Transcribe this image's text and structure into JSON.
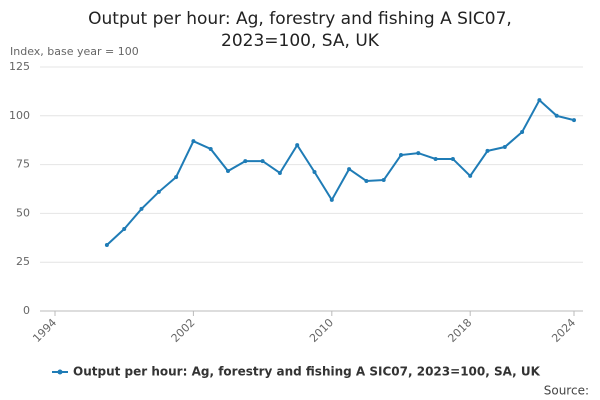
{
  "chart_data": {
    "type": "line",
    "title": "Output per hour: Ag, forestry and fishing A SIC07, 2023=100, SA, UK",
    "y_label": "Index, base year = 100",
    "source_label": "Source:",
    "x": [
      1997,
      1998,
      1999,
      2000,
      2001,
      2002,
      2003,
      2004,
      2005,
      2006,
      2007,
      2008,
      2009,
      2010,
      2011,
      2012,
      2013,
      2014,
      2015,
      2016,
      2017,
      2018,
      2019,
      2020,
      2021,
      2022,
      2023,
      2024
    ],
    "series": [
      {
        "name": "Output per hour: Ag, forestry and fishing A SIC07, 2023=100, SA, UK",
        "color": "#1f7cb6",
        "values": [
          33.8,
          42,
          52.3,
          61,
          68.6,
          87,
          83,
          71.7,
          76.8,
          76.8,
          70.7,
          85,
          71.2,
          56.9,
          72.7,
          66.6,
          67.1,
          79.9,
          80.9,
          77.9,
          77.9,
          69.2,
          82,
          84,
          91.7,
          108,
          100,
          97.8
        ]
      }
    ],
    "xlim": [
      1994,
      2024
    ],
    "xticks": [
      1994,
      2002,
      2010,
      2018,
      2024
    ],
    "ylim": [
      0,
      125
    ],
    "yticks": [
      0,
      25,
      50,
      75,
      100,
      125
    ],
    "grid": true
  }
}
